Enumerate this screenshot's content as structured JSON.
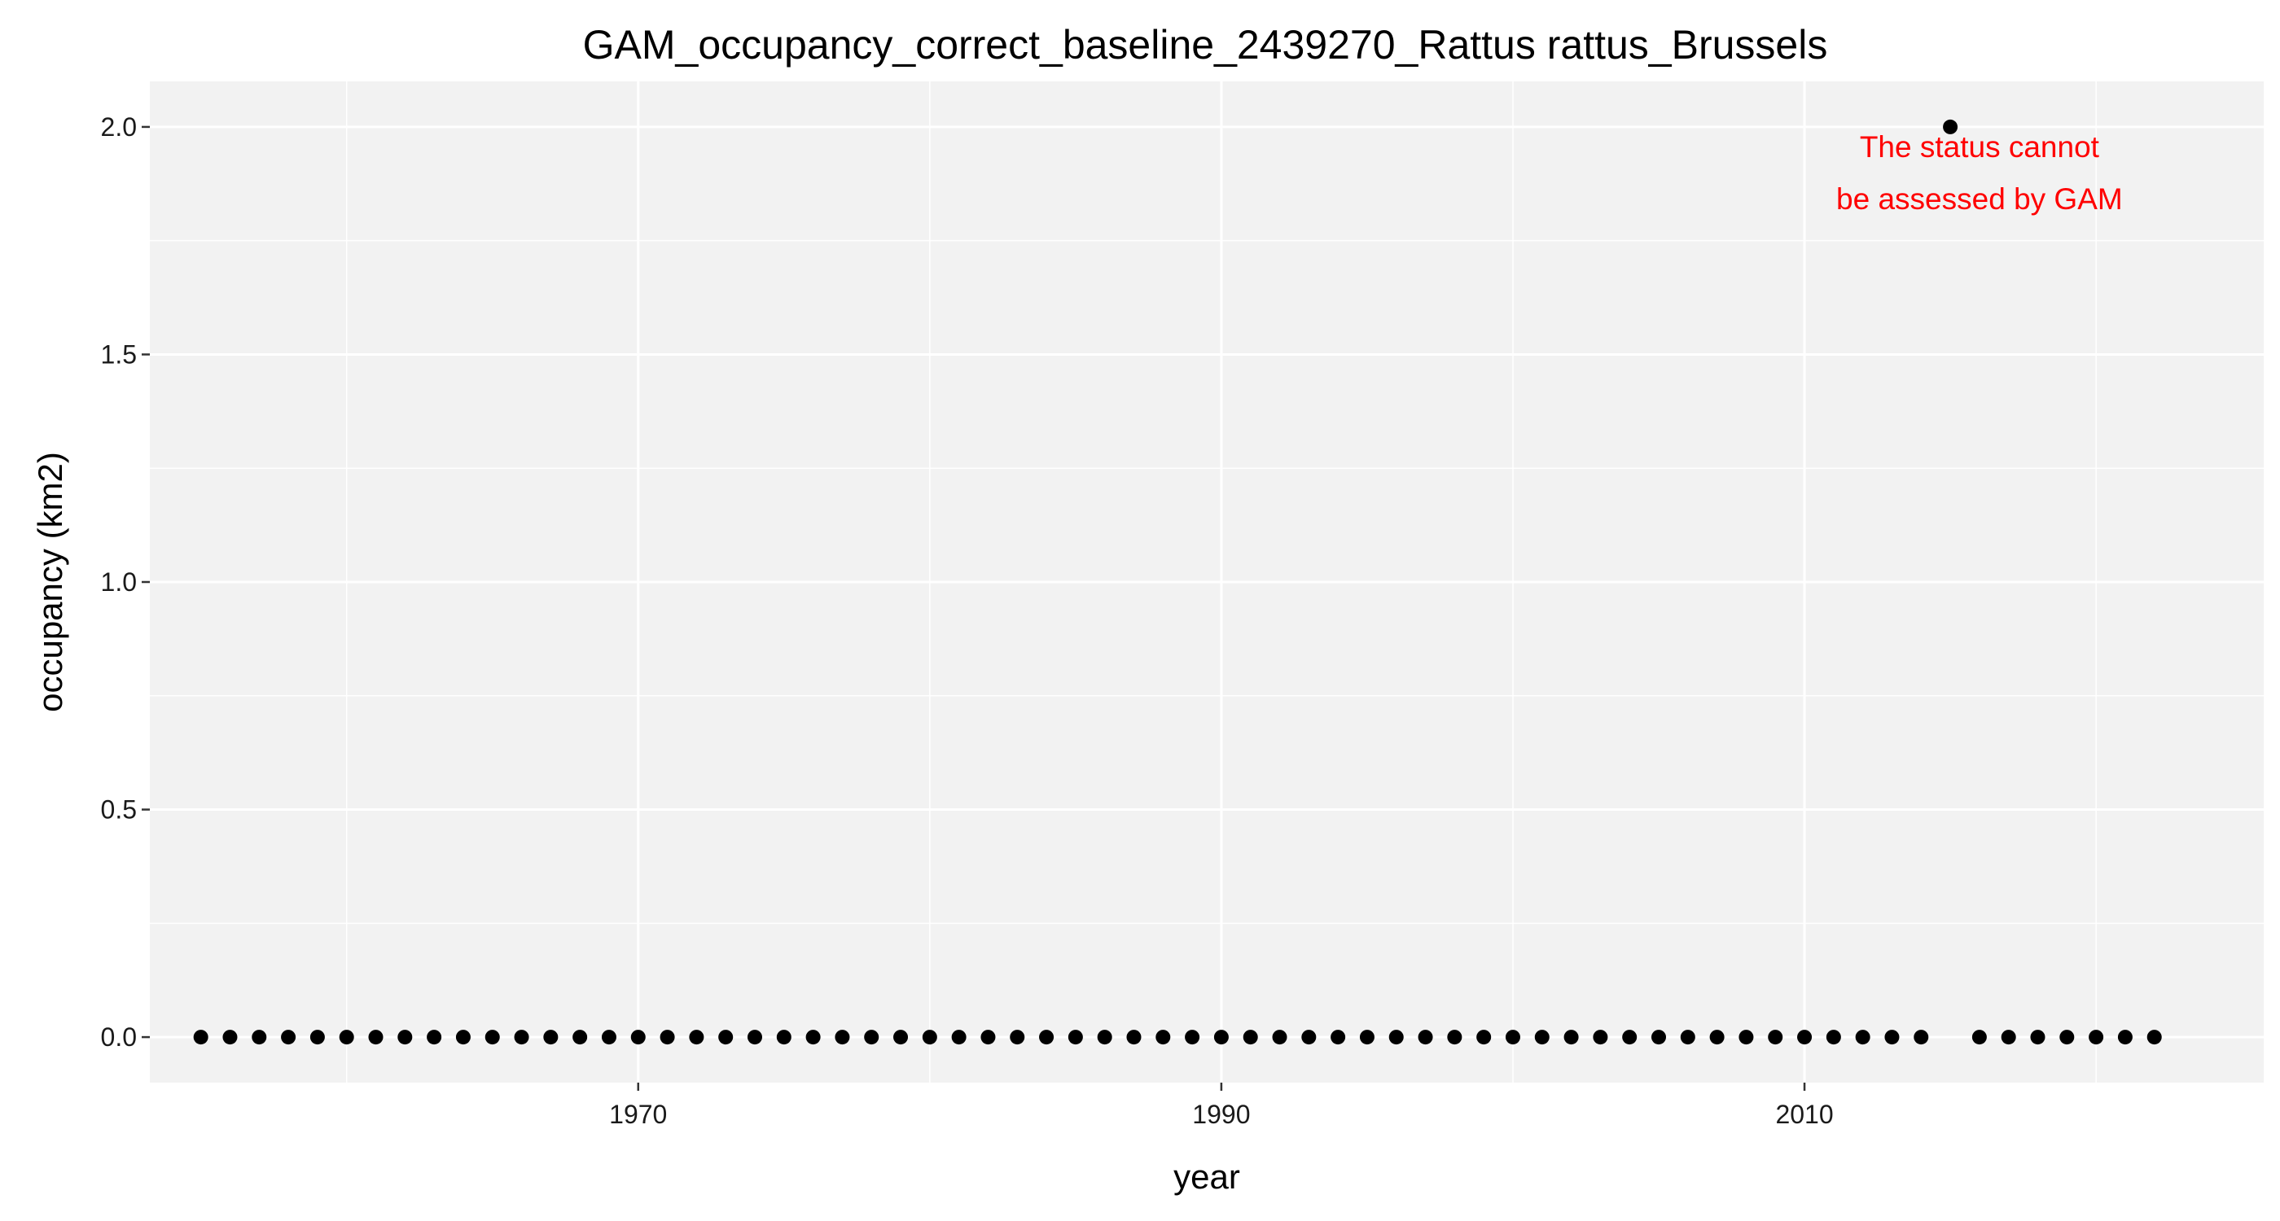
{
  "chart_data": {
    "type": "scatter",
    "title": "GAM_occupancy_correct_baseline_2439270_Rattus rattus_Brussels",
    "xlabel": "year",
    "ylabel": "occupancy (km2)",
    "xlim": [
      1953.25,
      2025.75
    ],
    "ylim": [
      -0.1,
      2.1
    ],
    "x_ticks": [
      1970,
      1990,
      2010
    ],
    "x_tick_labels": [
      "1970",
      "1990",
      "2010"
    ],
    "y_ticks": [
      0,
      0.5,
      1,
      1.5,
      2
    ],
    "y_tick_labels": [
      "0.0",
      "0.5",
      "1.0",
      "1.5",
      "2.0"
    ],
    "grid": true,
    "points": {
      "x": [
        1955,
        1956,
        1957,
        1958,
        1959,
        1960,
        1961,
        1962,
        1963,
        1964,
        1965,
        1966,
        1967,
        1968,
        1969,
        1970,
        1971,
        1972,
        1973,
        1974,
        1975,
        1976,
        1977,
        1978,
        1979,
        1980,
        1981,
        1982,
        1983,
        1984,
        1985,
        1986,
        1987,
        1988,
        1989,
        1990,
        1991,
        1992,
        1993,
        1994,
        1995,
        1996,
        1997,
        1998,
        1999,
        2000,
        2001,
        2002,
        2003,
        2004,
        2005,
        2006,
        2007,
        2008,
        2009,
        2010,
        2011,
        2012,
        2013,
        2014,
        2015,
        2016,
        2017,
        2018,
        2019,
        2020,
        2021,
        2022
      ],
      "y": [
        0,
        0,
        0,
        0,
        0,
        0,
        0,
        0,
        0,
        0,
        0,
        0,
        0,
        0,
        0,
        0,
        0,
        0,
        0,
        0,
        0,
        0,
        0,
        0,
        0,
        0,
        0,
        0,
        0,
        0,
        0,
        0,
        0,
        0,
        0,
        0,
        0,
        0,
        0,
        0,
        0,
        0,
        0,
        0,
        0,
        0,
        0,
        0,
        0,
        0,
        0,
        0,
        0,
        0,
        0,
        0,
        0,
        0,
        0,
        0,
        2,
        0,
        0,
        0,
        0,
        0,
        0,
        0
      ]
    },
    "annotation": {
      "lines": [
        "The status cannot",
        "be assessed by GAM"
      ],
      "x": 2016,
      "y": 1.9,
      "color": "#ff0000"
    },
    "colors": {
      "panel": "#f2f2f2",
      "grid": "#ffffff",
      "point": "#000000"
    }
  }
}
